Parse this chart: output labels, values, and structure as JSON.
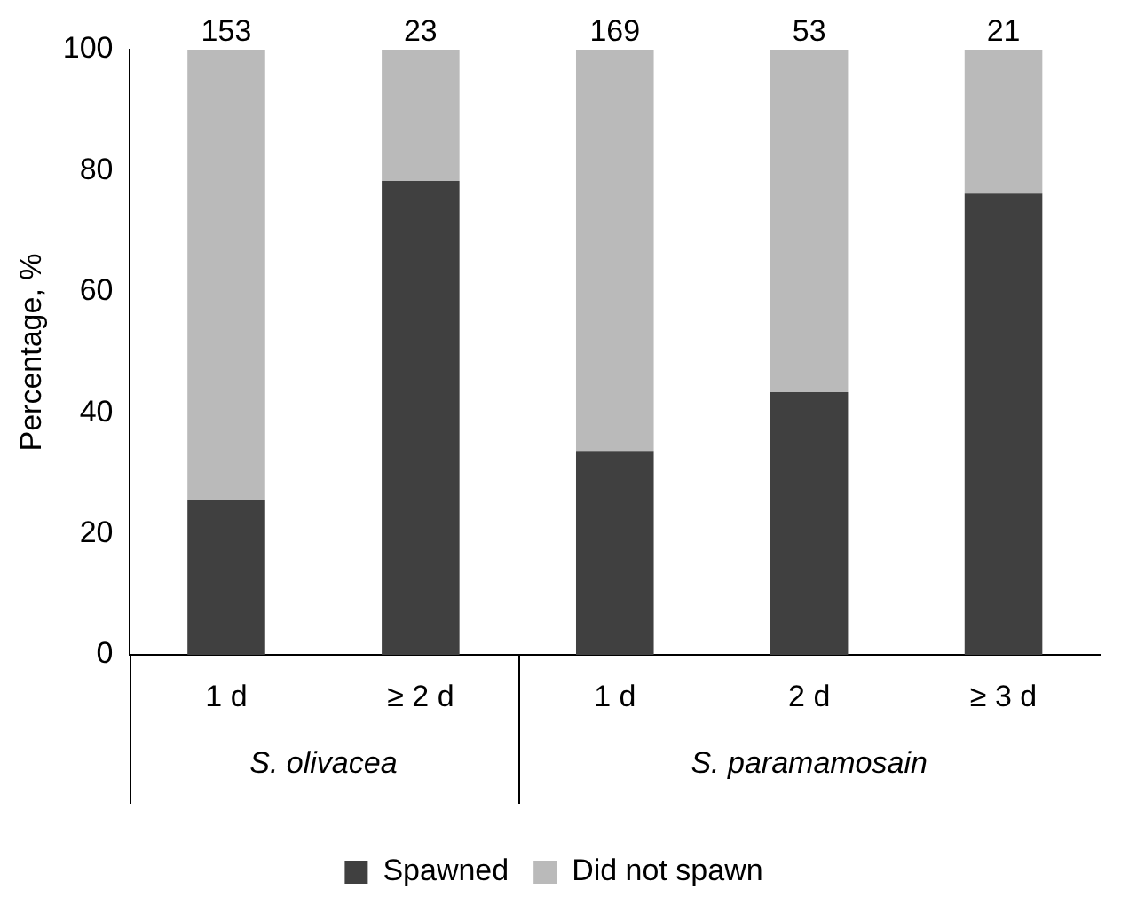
{
  "chart_data": {
    "type": "bar",
    "stacked": true,
    "ylabel": "Percentage, %",
    "categories": [
      "1 d",
      "≥ 2 d",
      "1 d",
      "2 d",
      "≥ 3 d"
    ],
    "series": [
      {
        "name": "Spawned",
        "color": "#404040",
        "values": [
          25.5,
          78.3,
          33.7,
          43.4,
          76.2
        ]
      },
      {
        "name": "Did not spawn",
        "color": "#bababa",
        "values": [
          74.5,
          21.7,
          66.3,
          56.6,
          23.8
        ]
      }
    ],
    "ylim": [
      0,
      100
    ],
    "yticks": [
      0,
      20,
      40,
      60,
      80,
      100
    ],
    "grid": false,
    "legend": "bottom",
    "annotations": [
      "153",
      "23",
      "169",
      "53",
      "21",
      "S. olivacea",
      "S. paramamosain"
    ]
  }
}
